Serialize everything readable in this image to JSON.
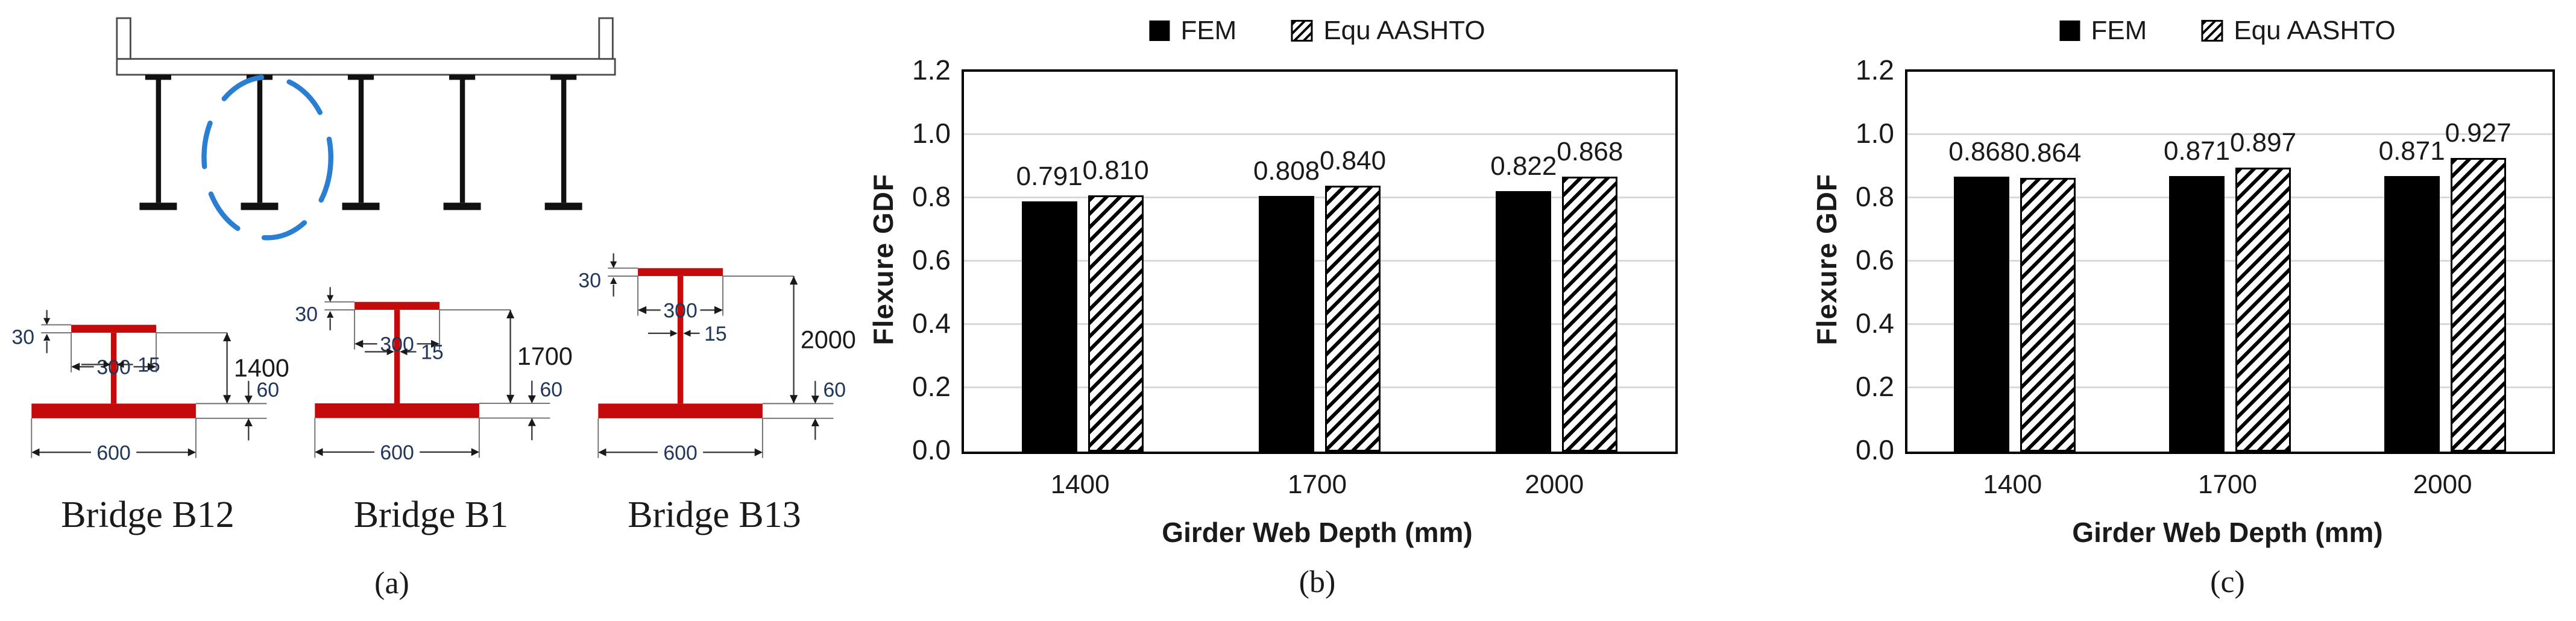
{
  "panel_a": {
    "caption": "(a)",
    "beam_color": "#C40A0A",
    "dimension_text_color": "#20365C",
    "cross_section": {
      "girder_count": 5,
      "circled_girder_index": 2,
      "highlight_color": "#2B7FD2"
    },
    "girders": [
      {
        "name": "Bridge B12",
        "top_flange_thickness": "30",
        "top_flange_width": "300",
        "web_thickness": "15",
        "web_depth": "1400",
        "bottom_flange_thickness": "60",
        "bottom_flange_width": "600"
      },
      {
        "name": "Bridge B1",
        "top_flange_thickness": "30",
        "top_flange_width": "300",
        "web_thickness": "15",
        "web_depth": "1700",
        "bottom_flange_thickness": "60",
        "bottom_flange_width": "600"
      },
      {
        "name": "Bridge B13",
        "top_flange_thickness": "30",
        "top_flange_width": "300",
        "web_thickness": "15",
        "web_depth": "2000",
        "bottom_flange_thickness": "60",
        "bottom_flange_width": "600"
      }
    ]
  },
  "chart_data": [
    {
      "type": "bar",
      "caption": "(b)",
      "title": "",
      "categories": [
        "1400",
        "1700",
        "2000"
      ],
      "series": [
        {
          "name": "FEM",
          "style": "solid",
          "color": "#000000",
          "values": [
            0.791,
            0.808,
            0.822
          ],
          "labels": [
            "0.791",
            "0.808",
            "0.822"
          ]
        },
        {
          "name": "Equ AASHTO",
          "style": "hatched",
          "color": "#000000",
          "values": [
            0.81,
            0.84,
            0.868
          ],
          "labels": [
            "0.810",
            "0.840",
            "0.868"
          ]
        }
      ],
      "xlabel": "Girder Web Depth (mm)",
      "ylabel": "Flexure GDF",
      "ylim": [
        0,
        1.2
      ],
      "yticks": [
        "0.0",
        "0.2",
        "0.4",
        "0.6",
        "0.8",
        "1.0",
        "1.2"
      ],
      "grid": true,
      "gridline_color": "#D9D9D9",
      "legend_position": "top"
    },
    {
      "type": "bar",
      "caption": "(c)",
      "title": "",
      "categories": [
        "1400",
        "1700",
        "2000"
      ],
      "series": [
        {
          "name": "FEM",
          "style": "solid",
          "color": "#000000",
          "values": [
            0.868,
            0.871,
            0.871
          ],
          "labels": [
            "0.868",
            "0.871",
            "0.871"
          ]
        },
        {
          "name": "Equ AASHTO",
          "style": "hatched",
          "color": "#000000",
          "values": [
            0.864,
            0.897,
            0.927
          ],
          "labels": [
            "0.864",
            "0.897",
            "0.927"
          ]
        }
      ],
      "xlabel": "Girder Web Depth (mm)",
      "ylabel": "Flexure GDF",
      "ylim": [
        0,
        1.2
      ],
      "yticks": [
        "0.0",
        "0.2",
        "0.4",
        "0.6",
        "0.8",
        "1.0",
        "1.2"
      ],
      "grid": true,
      "gridline_color": "#D9D9D9",
      "legend_position": "top"
    }
  ]
}
